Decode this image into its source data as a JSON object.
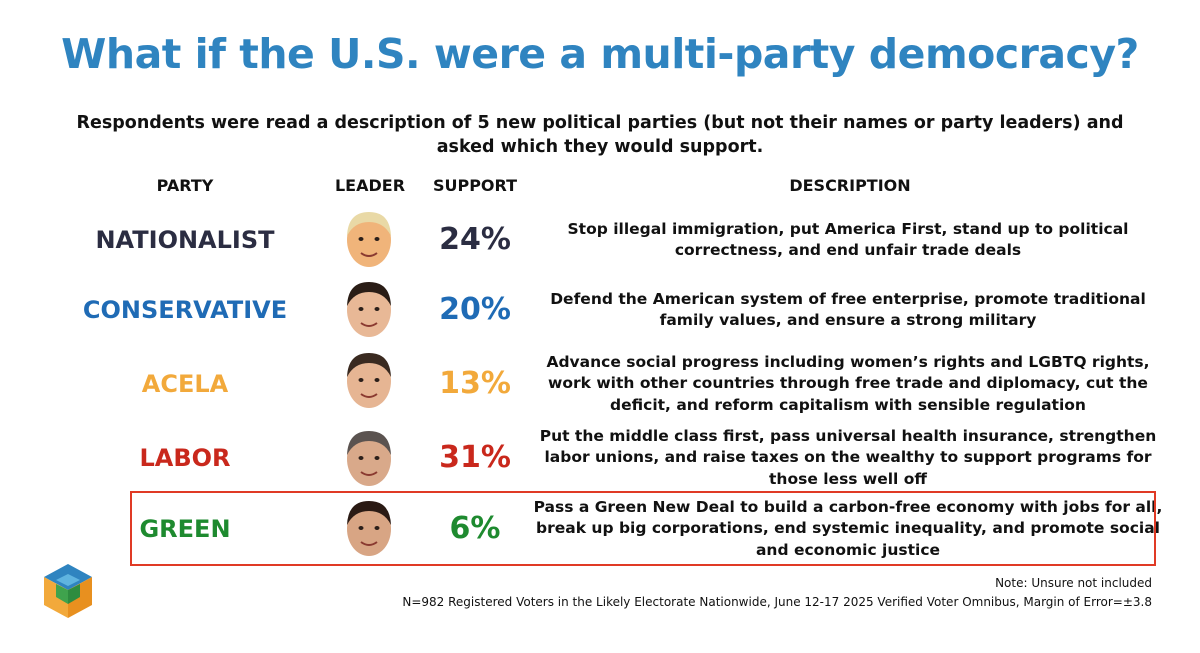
{
  "title": "What if the U.S. were a multi-party democracy?",
  "subtitle": "Respondents were read a description of 5 new political parties (but not their names or party leaders) and asked which they would support.",
  "columns": {
    "party": "PARTY",
    "leader": "LEADER",
    "support": "SUPPORT",
    "description": "DESCRIPTION"
  },
  "chart_data": {
    "type": "table",
    "title": "What if the U.S. were a multi-party democracy?",
    "unit": "%",
    "categories": [
      "NATIONALIST",
      "CONSERVATIVE",
      "ACELA",
      "LABOR",
      "GREEN"
    ],
    "values": [
      24,
      20,
      13,
      31,
      6
    ],
    "rows": [
      {
        "party": "NATIONALIST",
        "support": "24%",
        "value": 24,
        "color": "#2b2d42",
        "face": "leader-portrait-nationalist",
        "description": "Stop illegal immigration, put America First, stand up to political correctness, and end unfair trade deals"
      },
      {
        "party": "CONSERVATIVE",
        "support": "20%",
        "value": 20,
        "color": "#1f6bb5",
        "face": "leader-portrait-conservative",
        "description": "Defend the American system of free enterprise, promote traditional family values, and ensure a strong military"
      },
      {
        "party": "ACELA",
        "support": "13%",
        "value": 13,
        "color": "#f2a93b",
        "face": "leader-portrait-acela",
        "description": "Advance social progress including women’s rights and LGBTQ rights, work with other countries through free trade and diplomacy, cut the deficit, and reform capitalism with sensible regulation"
      },
      {
        "party": "LABOR",
        "support": "31%",
        "value": 31,
        "color": "#c9281c",
        "face": "leader-portrait-labor",
        "description": "Put the middle class first, pass universal health insurance, strengthen labor unions, and raise taxes on the wealthy to support programs for those less well off"
      },
      {
        "party": "GREEN",
        "support": "6%",
        "value": 6,
        "color": "#1e8a2f",
        "face": "leader-portrait-green",
        "description": "Pass a Green New Deal to build a carbon-free economy with jobs for all, break up big corporations, end systemic inequality, and promote social and economic justice",
        "highlighted": true
      }
    ]
  },
  "footer": {
    "note": "Note: Unsure not included",
    "source": "N=982 Registered Voters in the Likely Electorate Nationwide, June 12-17 2025 Verified Voter Omnibus, Margin of Error=±3.8"
  },
  "colors": {
    "title": "#2f84c0",
    "highlight_border": "#e03a25"
  },
  "logo_icon": "cube-logo-icon"
}
